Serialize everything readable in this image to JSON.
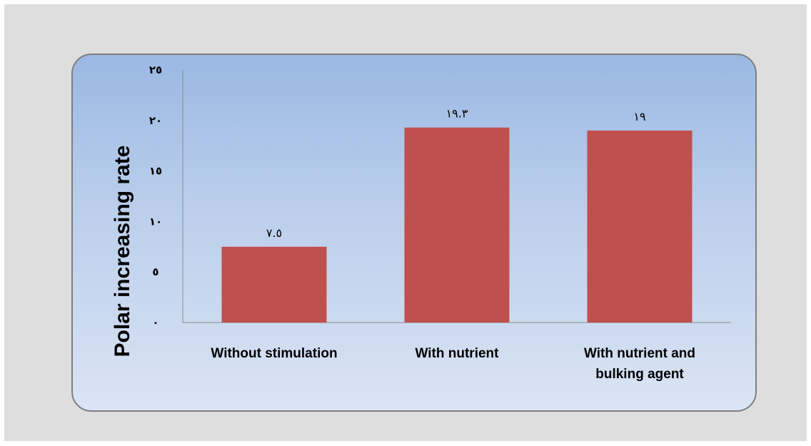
{
  "chart_data": {
    "type": "bar",
    "title": "",
    "xlabel": "",
    "ylabel": "Polar increasing rate",
    "categories": [
      [
        "Without stimulation"
      ],
      [
        "With nutrient"
      ],
      [
        "With nutrient and",
        "bulking agent"
      ]
    ],
    "values": [
      7.5,
      19.3,
      19
    ],
    "value_labels": [
      "٧.٥",
      "١٩.٣",
      "١٩"
    ],
    "ylim": [
      0,
      25
    ],
    "yticks": [
      0,
      5,
      10,
      15,
      20,
      25
    ],
    "ytick_labels": [
      "٠",
      "٥",
      "١٠",
      "١٥",
      "٢٠",
      "٢٥"
    ],
    "grid": false,
    "legend": "none",
    "bar_color": "#c0504d"
  }
}
